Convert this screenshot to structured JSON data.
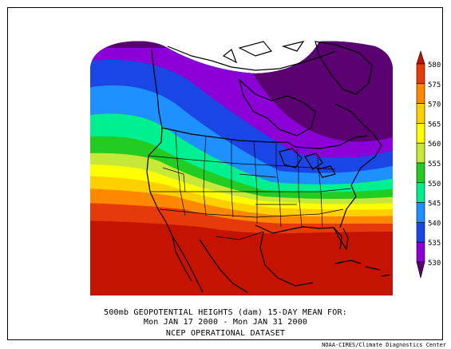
{
  "map": {
    "variable": "500mb GEOPOTENTIAL HEIGHTS (dam)",
    "region": "North America",
    "colorbar": {
      "ticks": [
        "580",
        "575",
        "570",
        "565",
        "560",
        "555",
        "550",
        "545",
        "540",
        "535",
        "530"
      ],
      "colors": {
        "above_580": "#c41300",
        "575_580": "#e63a0a",
        "570_575": "#ff8800",
        "565_570": "#ffd000",
        "560_565": "#ffff00",
        "555_560": "#c8e838",
        "550_555": "#22cc22",
        "545_550": "#00f090",
        "540_545": "#1e90ff",
        "535_540": "#1a46e6",
        "530_535": "#8b00d6",
        "below_530": "#5a0070"
      }
    },
    "bands": [
      {
        "level": "530",
        "color": "#5a0070"
      },
      {
        "level": "535",
        "color": "#8b00d6"
      },
      {
        "level": "540",
        "color": "#1a46e6"
      },
      {
        "level": "545",
        "color": "#1e90ff"
      },
      {
        "level": "550",
        "color": "#00f090"
      },
      {
        "level": "555",
        "color": "#22cc22"
      },
      {
        "level": "560",
        "color": "#c8e838"
      },
      {
        "level": "565",
        "color": "#ffff00"
      },
      {
        "level": "570",
        "color": "#ffd000"
      },
      {
        "level": "575",
        "color": "#ff8800"
      },
      {
        "level": "580",
        "color": "#e63a0a"
      }
    ]
  },
  "caption": {
    "line1": "500mb GEOPOTENTIAL HEIGHTS (dam)   15-DAY MEAN FOR:",
    "line2": "Mon JAN 17 2000 - Mon JAN 31 2000",
    "line3": "NCEP OPERATIONAL DATASET"
  },
  "credit": "NOAA-CIRES/Climate Diagnostics Center"
}
